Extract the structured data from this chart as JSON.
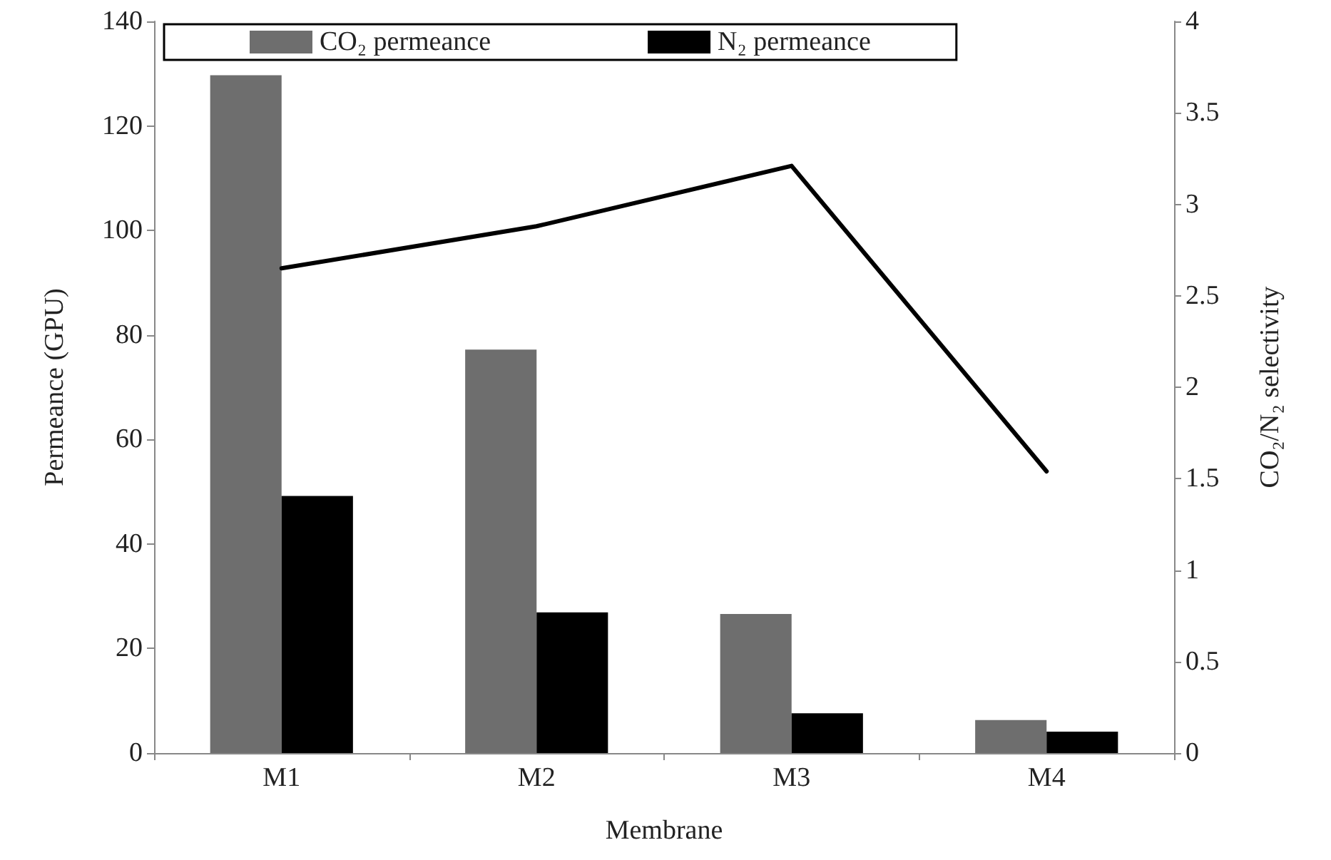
{
  "chart_data": {
    "type": "bar",
    "xlabel": "Membrane",
    "ylabel": "Permeance (GPU)",
    "y2label": "CO₂/N₂ selectivity",
    "categories": [
      "M1",
      "M2",
      "M3",
      "M4"
    ],
    "series": [
      {
        "name": "CO₂ permeance",
        "color": "#6e6e6e",
        "values": [
          129.7,
          77.2,
          26.6,
          6.3
        ]
      },
      {
        "name": "N₂ permeance",
        "color": "#000000",
        "values": [
          49.2,
          26.9,
          7.6,
          4.1
        ]
      },
      {
        "type": "line",
        "axis": "y2",
        "color": "#000000",
        "values": [
          2.65,
          2.88,
          3.21,
          1.54
        ]
      }
    ],
    "ylim": [
      0,
      140
    ],
    "yticks": [
      0,
      20,
      40,
      60,
      80,
      100,
      120,
      140
    ],
    "y2lim": [
      0,
      4
    ],
    "y2ticks": [
      0,
      0.5,
      1,
      1.5,
      2,
      2.5,
      3,
      3.5,
      4
    ],
    "grid": false,
    "legend": "top",
    "marker": "none",
    "line_style": "solid"
  }
}
